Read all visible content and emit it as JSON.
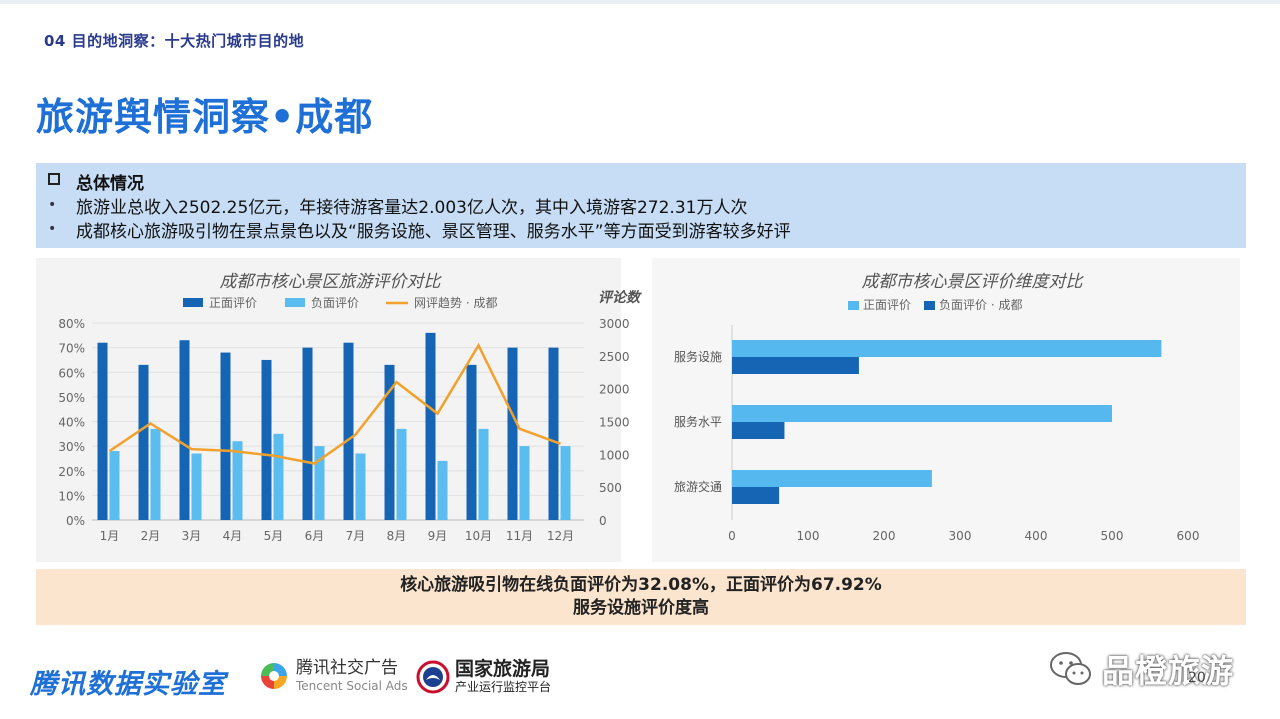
{
  "header": {
    "section_label": "04 目的地洞察：十大热门城市目的地",
    "title": "旅游舆情洞察•成都"
  },
  "summary": {
    "heading": "总体情况",
    "bullets": [
      "旅游业总收入2502.25亿元，年接待游客量达2.003亿人次，其中入境游客272.31万人次",
      "成都核心旅游吸引物在景点景色以及“服务设施、景区管理、服务水平”等方面受到游客较多好评"
    ],
    "bullet_symbol": "•"
  },
  "chart_data": [
    {
      "type": "bar",
      "title": "成都市核心景区旅游评价对比",
      "categories": [
        "1月",
        "2月",
        "3月",
        "4月",
        "5月",
        "6月",
        "7月",
        "8月",
        "9月",
        "10月",
        "11月",
        "12月"
      ],
      "series": [
        {
          "name": "正面评价",
          "axis": "left",
          "color": "#1565b4",
          "values": [
            72,
            63,
            73,
            68,
            65,
            70,
            72,
            63,
            76,
            63,
            70,
            70
          ]
        },
        {
          "name": "负面评价",
          "axis": "left",
          "color": "#5bbcf0",
          "values": [
            28,
            37,
            27,
            32,
            35,
            30,
            27,
            37,
            24,
            37,
            30,
            30
          ]
        },
        {
          "name": "网评趋势 · 成都",
          "type": "line",
          "axis": "right",
          "color": "#f2a12c",
          "values": [
            1050,
            1470,
            1080,
            1050,
            980,
            860,
            1300,
            2100,
            1620,
            2660,
            1390,
            1160
          ]
        }
      ],
      "left_axis": {
        "ticks": [
          "0%",
          "10%",
          "20%",
          "30%",
          "40%",
          "50%",
          "60%",
          "70%",
          "80%"
        ],
        "ylim": [
          0,
          80
        ]
      },
      "right_axis": {
        "label": "评论数",
        "ticks": [
          "0",
          "500",
          "1000",
          "1500",
          "2000",
          "2500",
          "3000"
        ],
        "ylim": [
          0,
          3000
        ]
      },
      "legend": "top"
    },
    {
      "type": "bar",
      "orientation": "horizontal",
      "title": "成都市核心景区评价维度对比",
      "categories": [
        "服务设施",
        "服务水平",
        "旅游交通"
      ],
      "series": [
        {
          "name": "正面评价",
          "color": "#55b8ee",
          "values": [
            565,
            500,
            263
          ]
        },
        {
          "name": "负面评价 · 成都",
          "color": "#1565b4",
          "values": [
            167,
            69,
            62
          ]
        }
      ],
      "x_axis": {
        "ticks": [
          "0",
          "100",
          "200",
          "300",
          "400",
          "500",
          "600"
        ],
        "xlim": [
          0,
          600
        ]
      },
      "legend": "top"
    }
  ],
  "conclusion": {
    "line1": "核心旅游吸引物在线负面评价为32.08%，正面评价为67.92%",
    "line2": "服务设施评价度高"
  },
  "footer": {
    "lab_name": "腾讯数据实验室",
    "social_cn": "腾讯社交广告",
    "social_en": "Tencent Social Ads",
    "cnta_name": "国家旅游局",
    "cnta_sub": "产业运行监控平台",
    "watermark": "品橙旅游",
    "page_number": "20"
  }
}
